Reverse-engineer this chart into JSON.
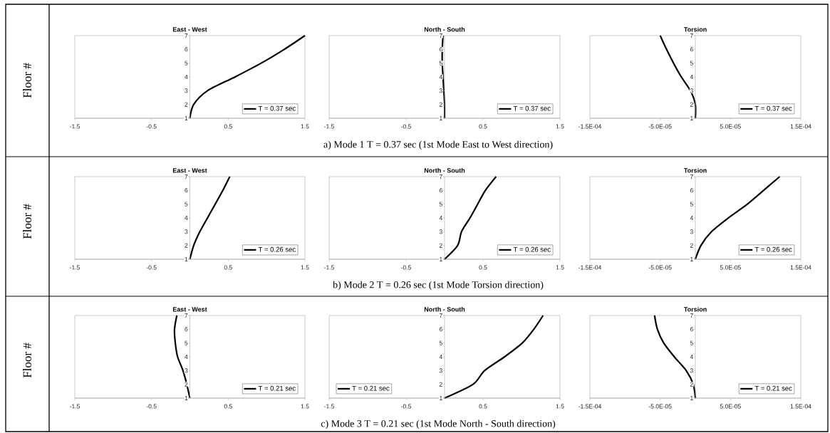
{
  "chart_data": [
    {
      "type": "line",
      "title": "East - West",
      "ylabel": "Floor #",
      "annotations": [
        "a) Mode 1 T = 0.37 sec (1st Mode East to West direction)"
      ],
      "legend": "bottom right",
      "xlim": [
        -1.5,
        1.5
      ],
      "xticks": [
        -1.5,
        -0.5,
        0.5,
        1.5
      ],
      "ylim": [
        1,
        7
      ],
      "yticks": [
        1,
        2,
        3,
        4,
        5,
        6,
        7
      ],
      "series": [
        {
          "name": "T = 0.37 sec",
          "color": "#000000",
          "x": [
            0.0,
            0.05,
            0.23,
            0.59,
            0.93,
            1.23,
            1.5
          ],
          "values": [
            1,
            2,
            3,
            4,
            5,
            6,
            7
          ]
        }
      ]
    },
    {
      "type": "line",
      "title": "North - South",
      "legend": "bottom right",
      "xlim": [
        -1.5,
        1.5
      ],
      "xticks": [
        -1.5,
        -0.5,
        0.5,
        1.5
      ],
      "ylim": [
        1,
        7
      ],
      "yticks": [
        1,
        2,
        3,
        4,
        5,
        6,
        7
      ],
      "series": [
        {
          "name": "T = 0.37 sec",
          "color": "#000000",
          "x": [
            0.0,
            0.0,
            -0.01,
            -0.02,
            -0.03,
            -0.03,
            -0.02
          ],
          "values": [
            1,
            2,
            3,
            4,
            5,
            6,
            7
          ]
        }
      ]
    },
    {
      "type": "line",
      "title": "Torsion",
      "legend": "bottom right",
      "xlim": [
        -0.00015,
        0.00015
      ],
      "xticks": [
        {
          "value": -0.00015,
          "label": "-1.5E-04"
        },
        {
          "value": -5e-05,
          "label": "-5.0E-05"
        },
        {
          "value": 5e-05,
          "label": "5.0E-05"
        },
        {
          "value": 0.00015,
          "label": "1.5E-04"
        }
      ],
      "ylim": [
        1,
        7
      ],
      "yticks": [
        1,
        2,
        3,
        4,
        5,
        6,
        7
      ],
      "series": [
        {
          "name": "T = 0.37 sec",
          "color": "#000000",
          "x": [
            0.0,
            0.0,
            -7e-06,
            -2e-05,
            -3.1e-05,
            -4.1e-05,
            -5e-05
          ],
          "values": [
            1,
            2,
            3,
            4,
            5,
            6,
            7
          ]
        }
      ]
    },
    {
      "type": "line",
      "title": "East - West",
      "ylabel": "Floor #",
      "annotations": [
        "b) Mode 2 T = 0.26 sec (1st Mode Torsion direction)"
      ],
      "legend": "bottom right",
      "xlim": [
        -1.5,
        1.5
      ],
      "xticks": [
        -1.5,
        -0.5,
        0.5,
        1.5
      ],
      "ylim": [
        1,
        7
      ],
      "yticks": [
        1,
        2,
        3,
        4,
        5,
        6,
        7
      ],
      "series": [
        {
          "name": "T = 0.26 sec",
          "color": "#000000",
          "x": [
            0.0,
            0.05,
            0.13,
            0.23,
            0.33,
            0.43,
            0.52
          ],
          "values": [
            1,
            2,
            3,
            4,
            5,
            6,
            7
          ]
        }
      ]
    },
    {
      "type": "line",
      "title": "North - South",
      "legend": "bottom right",
      "xlim": [
        -1.5,
        1.5
      ],
      "xticks": [
        -1.5,
        -0.5,
        0.5,
        1.5
      ],
      "ylim": [
        1,
        7
      ],
      "yticks": [
        1,
        2,
        3,
        4,
        5,
        6,
        7
      ],
      "series": [
        {
          "name": "T = 0.26 sec",
          "color": "#000000",
          "x": [
            0.0,
            0.17,
            0.22,
            0.33,
            0.43,
            0.53,
            0.67
          ],
          "values": [
            1,
            2,
            3,
            4,
            5,
            6,
            7
          ]
        }
      ]
    },
    {
      "type": "line",
      "title": "Torsion",
      "legend": "bottom right",
      "xlim": [
        -0.00015,
        0.00015
      ],
      "xticks": [
        {
          "value": -0.00015,
          "label": "-1.5E-04"
        },
        {
          "value": -5e-05,
          "label": "-5.0E-05"
        },
        {
          "value": 5e-05,
          "label": "5.0E-05"
        },
        {
          "value": 0.00015,
          "label": "1.5E-04"
        }
      ],
      "ylim": [
        1,
        7
      ],
      "yticks": [
        1,
        2,
        3,
        4,
        5,
        6,
        7
      ],
      "series": [
        {
          "name": "T = 0.26 sec",
          "color": "#000000",
          "x": [
            0.0,
            8e-06,
            2.3e-05,
            4.7e-05,
            7.4e-05,
            9.7e-05,
            0.00012
          ],
          "values": [
            1,
            2,
            3,
            4,
            5,
            6,
            7
          ]
        }
      ]
    },
    {
      "type": "line",
      "title": "East - West",
      "ylabel": "Floor #",
      "annotations": [
        "c) Mode 3 T = 0.21 sec (1st Mode North - South direction)"
      ],
      "legend": "bottom right",
      "xlim": [
        -1.5,
        1.5
      ],
      "xticks": [
        -1.5,
        -0.5,
        0.5,
        1.5
      ],
      "ylim": [
        1,
        7
      ],
      "yticks": [
        1,
        2,
        3,
        4,
        5,
        6,
        7
      ],
      "series": [
        {
          "name": "T = 0.21 sec",
          "color": "#000000",
          "x": [
            0.0,
            -0.04,
            -0.09,
            -0.16,
            -0.19,
            -0.2,
            -0.17
          ],
          "values": [
            1,
            2,
            3,
            4,
            5,
            6,
            7
          ]
        }
      ]
    },
    {
      "type": "line",
      "title": "North - South",
      "legend": "bottom left",
      "xlim": [
        -1.5,
        1.5
      ],
      "xticks": [
        -1.5,
        -0.5,
        0.5,
        1.5
      ],
      "ylim": [
        1,
        7
      ],
      "yticks": [
        1,
        2,
        3,
        4,
        5,
        6,
        7
      ],
      "series": [
        {
          "name": "T = 0.21 sec",
          "color": "#000000",
          "x": [
            0.0,
            0.37,
            0.52,
            0.78,
            1.01,
            1.16,
            1.28
          ],
          "values": [
            1,
            2,
            3,
            4,
            5,
            6,
            7
          ]
        }
      ]
    },
    {
      "type": "line",
      "title": "Torsion",
      "legend": "bottom right",
      "xlim": [
        -0.00015,
        0.00015
      ],
      "xticks": [
        {
          "value": -0.00015,
          "label": "-1.5E-04"
        },
        {
          "value": -5e-05,
          "label": "-5.0E-05"
        },
        {
          "value": 5e-05,
          "label": "5.0E-05"
        },
        {
          "value": 0.00015,
          "label": "1.5E-04"
        }
      ],
      "ylim": [
        1,
        7
      ],
      "yticks": [
        1,
        2,
        3,
        4,
        5,
        6,
        7
      ],
      "series": [
        {
          "name": "T = 0.21 sec",
          "color": "#000000",
          "x": [
            0.0,
            -3e-06,
            -1.3e-05,
            -3e-05,
            -4.5e-05,
            -5.4e-05,
            -5.8e-05
          ],
          "values": [
            1,
            2,
            3,
            4,
            5,
            6,
            7
          ]
        }
      ]
    }
  ]
}
